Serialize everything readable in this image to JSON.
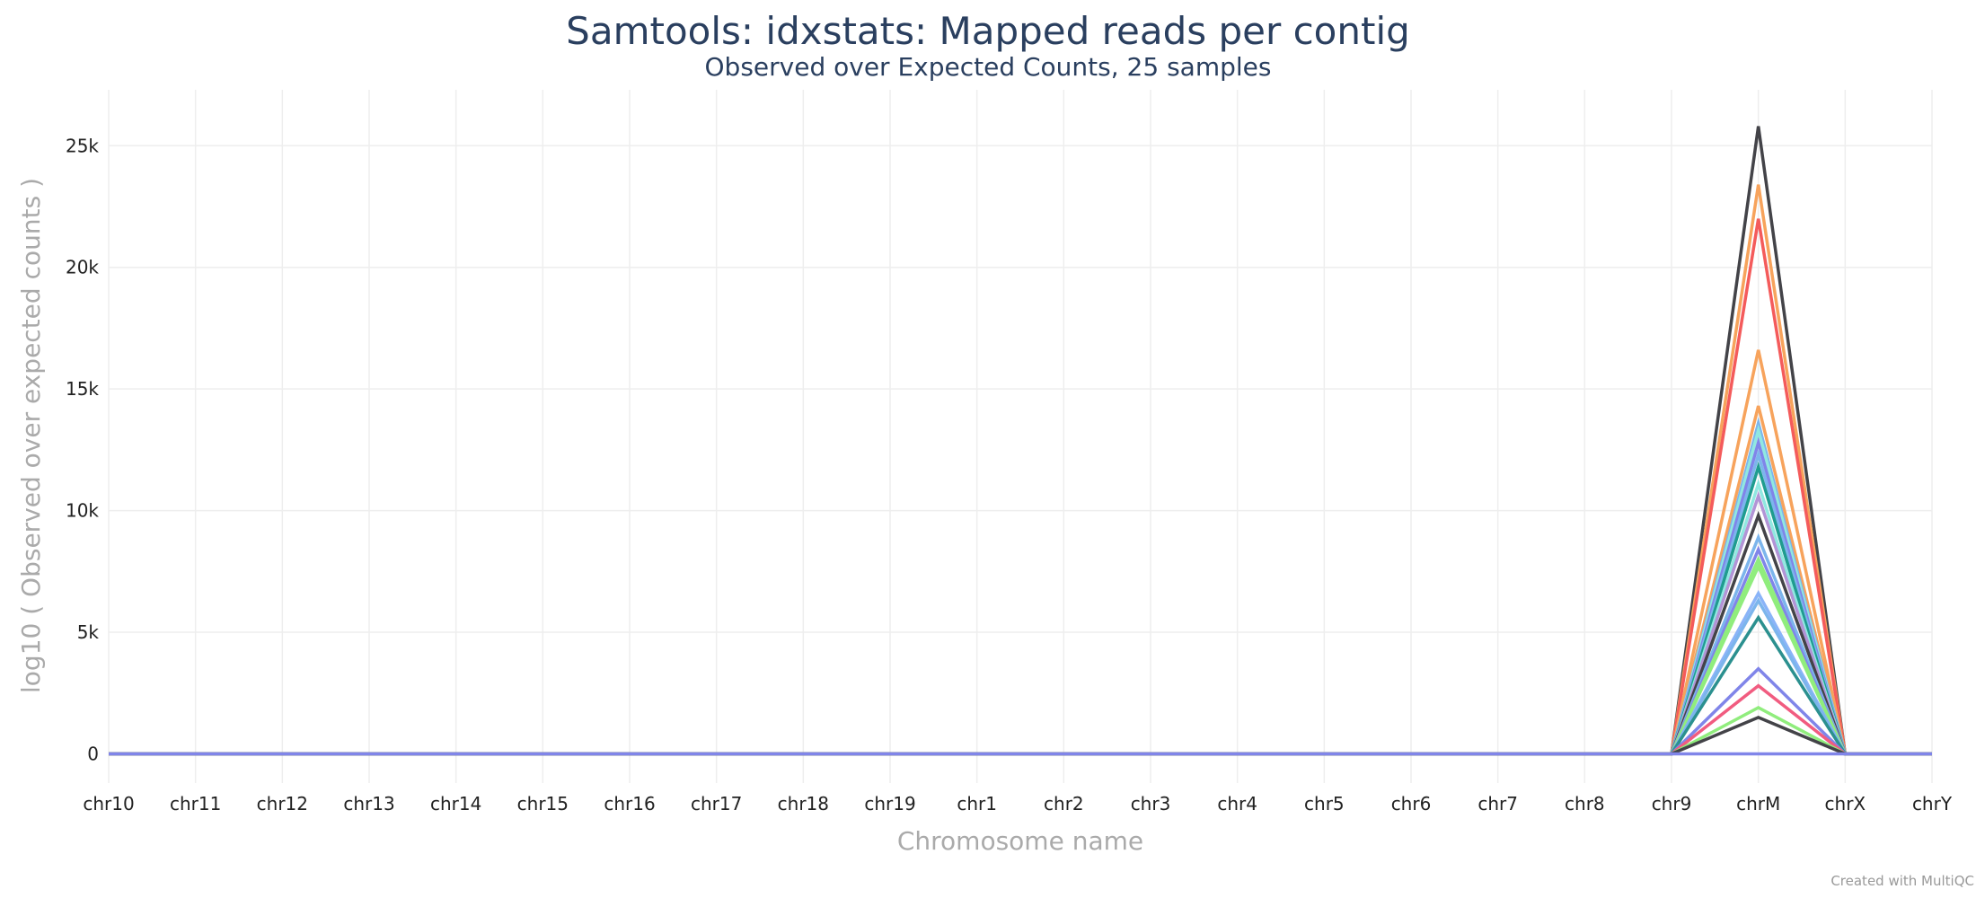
{
  "chart_data": {
    "type": "line",
    "title": "Samtools: idxstats: Mapped reads per contig",
    "subtitle": "Observed over Expected Counts, 25 samples",
    "xlabel": "Chromosome name",
    "ylabel": "log10 ( Observed over expected counts )",
    "categories": [
      "chr10",
      "chr11",
      "chr12",
      "chr13",
      "chr14",
      "chr15",
      "chr16",
      "chr17",
      "chr18",
      "chr19",
      "chr1",
      "chr2",
      "chr3",
      "chr4",
      "chr5",
      "chr6",
      "chr7",
      "chr8",
      "chr9",
      "chrM",
      "chrX",
      "chrY"
    ],
    "ylim": [
      -1200,
      27300
    ],
    "yticks": [
      0,
      5000,
      10000,
      15000,
      20000,
      25000
    ],
    "ytick_labels": [
      "0",
      "5k",
      "10k",
      "15k",
      "20k",
      "25k"
    ],
    "grid": true,
    "legend": "none",
    "peak_category": "chrM",
    "series": [
      {
        "color": "#434348",
        "chrM": 25800
      },
      {
        "color": "#f7a35c",
        "chrM": 23400
      },
      {
        "color": "#f45b5b",
        "chrM": 22000
      },
      {
        "color": "#f7a35c",
        "chrM": 16600
      },
      {
        "color": "#f7a35c",
        "chrM": 14300
      },
      {
        "color": "#7cb5ec",
        "chrM": 13600
      },
      {
        "color": "#91e8e1",
        "chrM": 13300
      },
      {
        "color": "#8085e9",
        "chrM": 12800
      },
      {
        "color": "#7cb5ec",
        "chrM": 12300
      },
      {
        "color": "#1f9c8f",
        "chrM": 11800
      },
      {
        "color": "#91e8e1",
        "chrM": 11100
      },
      {
        "color": "#b294d6",
        "chrM": 10600
      },
      {
        "color": "#434348",
        "chrM": 9800
      },
      {
        "color": "#7cb5ec",
        "chrM": 8900
      },
      {
        "color": "#8085e9",
        "chrM": 8400
      },
      {
        "color": "#90ed7d",
        "chrM": 8000
      },
      {
        "color": "#90ed7d",
        "chrM": 7700
      },
      {
        "color": "#8ab4f8",
        "chrM": 6600
      },
      {
        "color": "#7cb5ec",
        "chrM": 6300
      },
      {
        "color": "#2b908f",
        "chrM": 5600
      },
      {
        "color": "#8085e9",
        "chrM": 3500
      },
      {
        "color": "#f15c80",
        "chrM": 2800
      },
      {
        "color": "#90ed7d",
        "chrM": 1900
      },
      {
        "color": "#434348",
        "chrM": 1500
      },
      {
        "color": "#8085e9",
        "chrM": 0
      }
    ]
  },
  "credit": "Created with MultiQC"
}
